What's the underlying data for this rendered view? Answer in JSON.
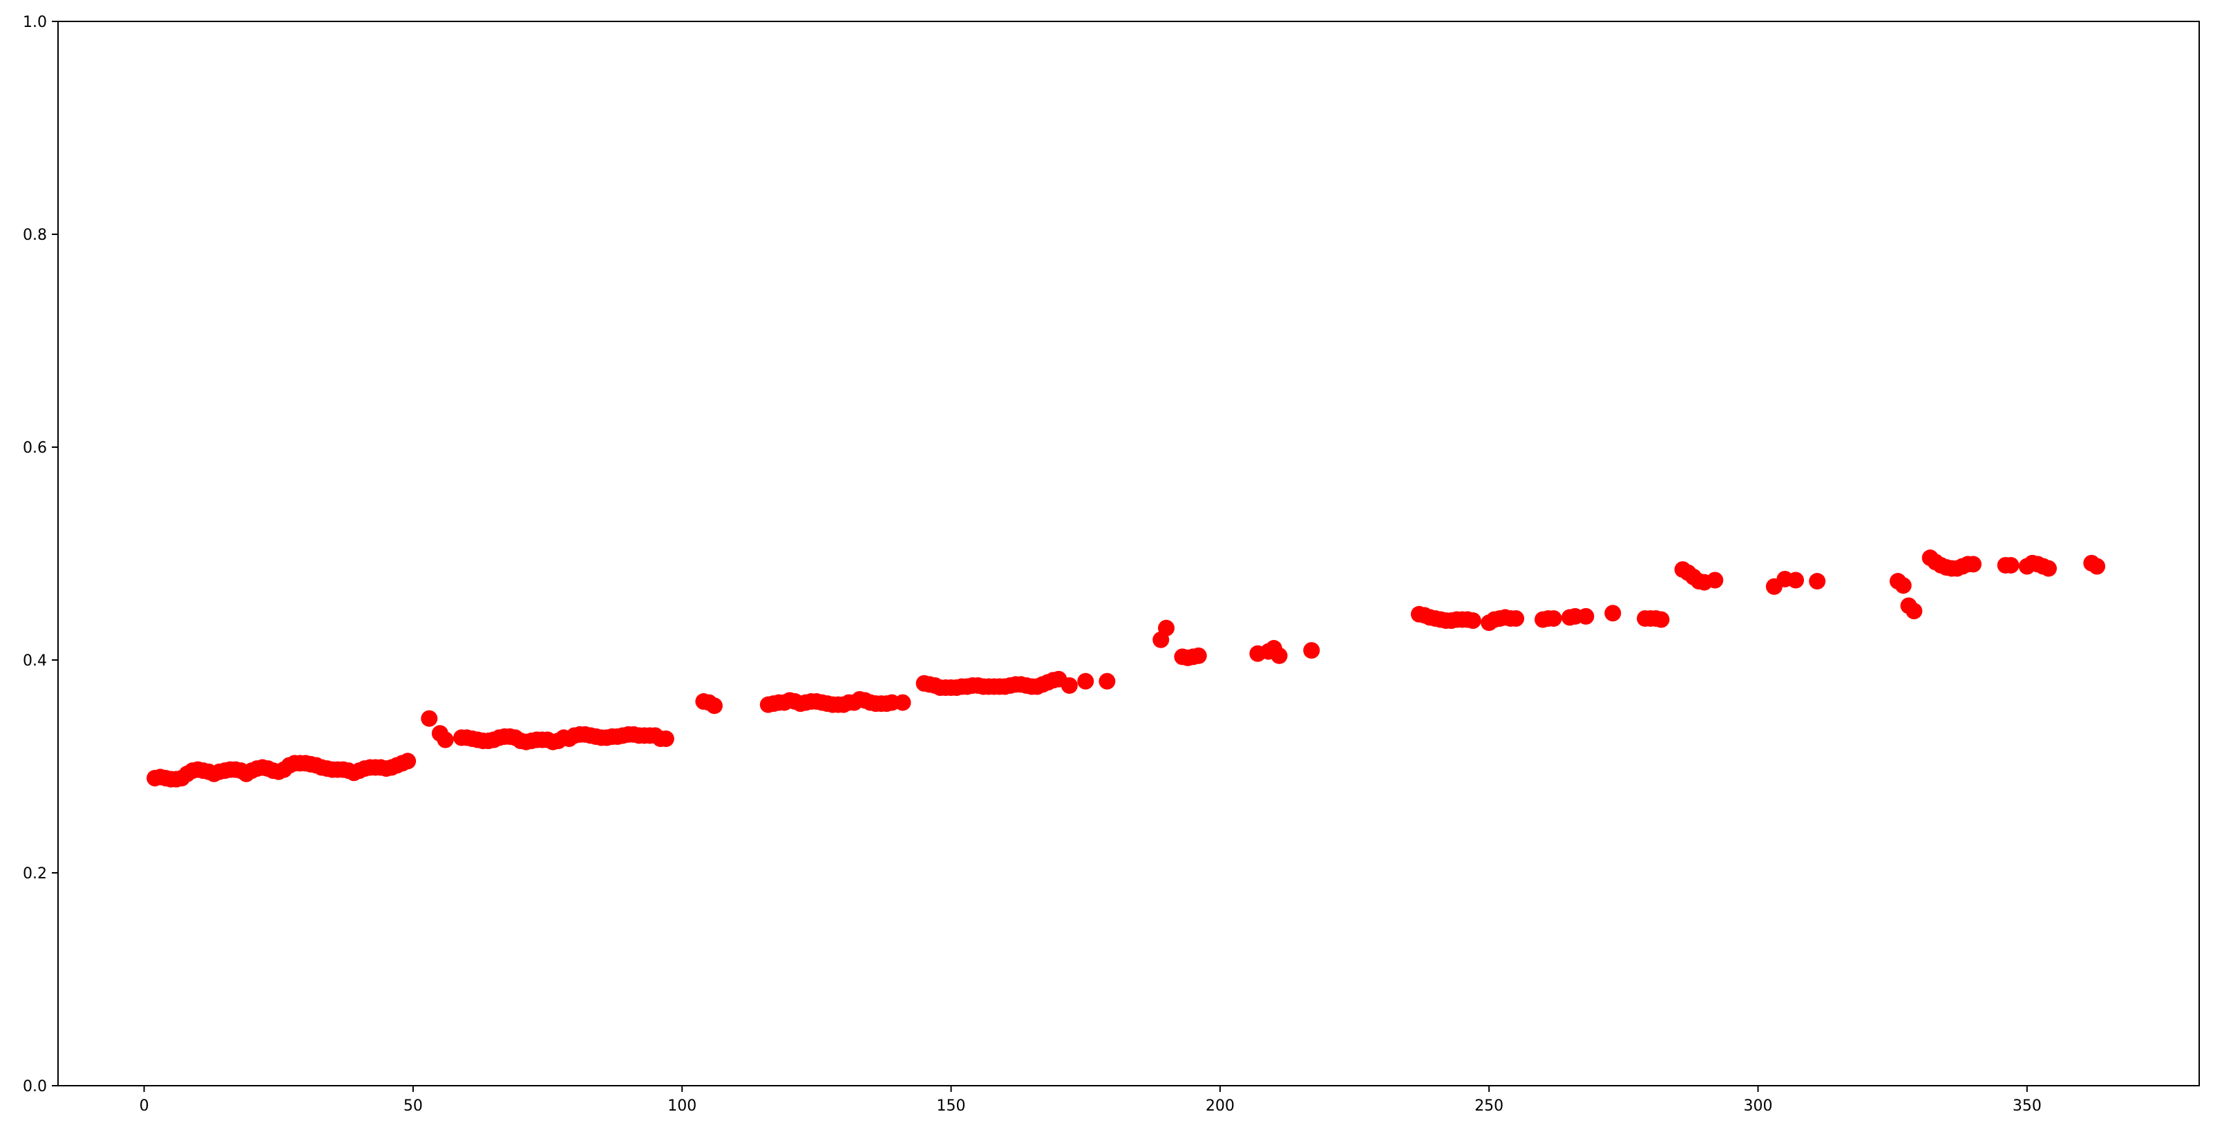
{
  "chart_data": {
    "type": "scatter",
    "title": "",
    "xlabel": "",
    "ylabel": "",
    "xlim": [
      -16,
      382
    ],
    "ylim": [
      0,
      1
    ],
    "grid": false,
    "marker_color": "#ff0000",
    "x_ticks": [
      0,
      50,
      100,
      150,
      200,
      250,
      300,
      350
    ],
    "x_tick_labels": [
      "0",
      "50",
      "100",
      "150",
      "200",
      "250",
      "300",
      "350"
    ],
    "y_ticks": [
      0,
      0.2,
      0.4,
      0.6,
      0.8,
      1.0
    ],
    "y_tick_labels": [
      "0.0",
      "0.2",
      "0.4",
      "0.6",
      "0.8",
      "1.0"
    ],
    "points": [
      [
        2,
        0.289
      ],
      [
        3,
        0.29
      ],
      [
        4,
        0.289
      ],
      [
        5,
        0.288
      ],
      [
        6,
        0.288
      ],
      [
        7,
        0.289
      ],
      [
        8,
        0.293
      ],
      [
        9,
        0.296
      ],
      [
        10,
        0.297
      ],
      [
        11,
        0.296
      ],
      [
        12,
        0.295
      ],
      [
        13,
        0.293
      ],
      [
        14,
        0.295
      ],
      [
        15,
        0.296
      ],
      [
        16,
        0.297
      ],
      [
        17,
        0.297
      ],
      [
        18,
        0.296
      ],
      [
        19,
        0.293
      ],
      [
        20,
        0.296
      ],
      [
        21,
        0.298
      ],
      [
        22,
        0.299
      ],
      [
        23,
        0.298
      ],
      [
        24,
        0.296
      ],
      [
        25,
        0.295
      ],
      [
        26,
        0.297
      ],
      [
        27,
        0.301
      ],
      [
        28,
        0.303
      ],
      [
        29,
        0.303
      ],
      [
        30,
        0.303
      ],
      [
        31,
        0.302
      ],
      [
        32,
        0.301
      ],
      [
        33,
        0.299
      ],
      [
        34,
        0.298
      ],
      [
        35,
        0.297
      ],
      [
        36,
        0.297
      ],
      [
        37,
        0.297
      ],
      [
        38,
        0.296
      ],
      [
        39,
        0.294
      ],
      [
        40,
        0.296
      ],
      [
        41,
        0.298
      ],
      [
        42,
        0.299
      ],
      [
        43,
        0.299
      ],
      [
        44,
        0.299
      ],
      [
        45,
        0.298
      ],
      [
        46,
        0.299
      ],
      [
        47,
        0.301
      ],
      [
        48,
        0.303
      ],
      [
        49,
        0.305
      ],
      [
        53,
        0.345
      ],
      [
        55,
        0.331
      ],
      [
        56,
        0.325
      ],
      [
        59,
        0.327
      ],
      [
        60,
        0.327
      ],
      [
        61,
        0.326
      ],
      [
        62,
        0.325
      ],
      [
        63,
        0.324
      ],
      [
        64,
        0.324
      ],
      [
        65,
        0.325
      ],
      [
        66,
        0.327
      ],
      [
        67,
        0.328
      ],
      [
        68,
        0.328
      ],
      [
        69,
        0.327
      ],
      [
        70,
        0.324
      ],
      [
        71,
        0.323
      ],
      [
        72,
        0.324
      ],
      [
        73,
        0.325
      ],
      [
        74,
        0.325
      ],
      [
        75,
        0.325
      ],
      [
        76,
        0.323
      ],
      [
        77,
        0.324
      ],
      [
        78,
        0.327
      ],
      [
        79,
        0.326
      ],
      [
        80,
        0.329
      ],
      [
        81,
        0.33
      ],
      [
        82,
        0.33
      ],
      [
        83,
        0.329
      ],
      [
        84,
        0.328
      ],
      [
        85,
        0.327
      ],
      [
        86,
        0.327
      ],
      [
        87,
        0.328
      ],
      [
        88,
        0.328
      ],
      [
        89,
        0.329
      ],
      [
        90,
        0.33
      ],
      [
        91,
        0.33
      ],
      [
        92,
        0.329
      ],
      [
        93,
        0.329
      ],
      [
        94,
        0.329
      ],
      [
        95,
        0.329
      ],
      [
        96,
        0.326
      ],
      [
        97,
        0.326
      ],
      [
        104,
        0.361
      ],
      [
        105,
        0.36
      ],
      [
        106,
        0.357
      ],
      [
        116,
        0.358
      ],
      [
        117,
        0.359
      ],
      [
        118,
        0.36
      ],
      [
        119,
        0.36
      ],
      [
        120,
        0.362
      ],
      [
        121,
        0.361
      ],
      [
        122,
        0.359
      ],
      [
        123,
        0.36
      ],
      [
        124,
        0.361
      ],
      [
        125,
        0.361
      ],
      [
        126,
        0.36
      ],
      [
        127,
        0.359
      ],
      [
        128,
        0.358
      ],
      [
        129,
        0.358
      ],
      [
        130,
        0.358
      ],
      [
        131,
        0.36
      ],
      [
        132,
        0.36
      ],
      [
        133,
        0.363
      ],
      [
        134,
        0.362
      ],
      [
        135,
        0.36
      ],
      [
        136,
        0.359
      ],
      [
        137,
        0.359
      ],
      [
        138,
        0.359
      ],
      [
        139,
        0.36
      ],
      [
        141,
        0.36
      ],
      [
        145,
        0.378
      ],
      [
        146,
        0.377
      ],
      [
        147,
        0.376
      ],
      [
        148,
        0.374
      ],
      [
        149,
        0.374
      ],
      [
        150,
        0.374
      ],
      [
        151,
        0.374
      ],
      [
        152,
        0.375
      ],
      [
        153,
        0.375
      ],
      [
        154,
        0.376
      ],
      [
        155,
        0.376
      ],
      [
        156,
        0.375
      ],
      [
        157,
        0.375
      ],
      [
        158,
        0.375
      ],
      [
        159,
        0.375
      ],
      [
        160,
        0.375
      ],
      [
        161,
        0.376
      ],
      [
        162,
        0.377
      ],
      [
        163,
        0.377
      ],
      [
        164,
        0.376
      ],
      [
        165,
        0.375
      ],
      [
        166,
        0.375
      ],
      [
        167,
        0.377
      ],
      [
        168,
        0.379
      ],
      [
        169,
        0.381
      ],
      [
        170,
        0.382
      ],
      [
        172,
        0.376
      ],
      [
        175,
        0.38
      ],
      [
        179,
        0.38
      ],
      [
        189,
        0.419
      ],
      [
        190,
        0.43
      ],
      [
        193,
        0.403
      ],
      [
        194,
        0.402
      ],
      [
        195,
        0.403
      ],
      [
        196,
        0.404
      ],
      [
        207,
        0.406
      ],
      [
        209,
        0.408
      ],
      [
        210,
        0.411
      ],
      [
        211,
        0.404
      ],
      [
        217,
        0.409
      ],
      [
        237,
        0.443
      ],
      [
        238,
        0.442
      ],
      [
        239,
        0.44
      ],
      [
        240,
        0.439
      ],
      [
        241,
        0.438
      ],
      [
        242,
        0.437
      ],
      [
        243,
        0.437
      ],
      [
        244,
        0.438
      ],
      [
        245,
        0.438
      ],
      [
        246,
        0.438
      ],
      [
        247,
        0.437
      ],
      [
        250,
        0.435
      ],
      [
        251,
        0.438
      ],
      [
        252,
        0.439
      ],
      [
        253,
        0.44
      ],
      [
        254,
        0.439
      ],
      [
        255,
        0.439
      ],
      [
        260,
        0.438
      ],
      [
        261,
        0.439
      ],
      [
        262,
        0.439
      ],
      [
        265,
        0.44
      ],
      [
        266,
        0.441
      ],
      [
        268,
        0.441
      ],
      [
        273,
        0.444
      ],
      [
        279,
        0.439
      ],
      [
        280,
        0.439
      ],
      [
        281,
        0.439
      ],
      [
        282,
        0.438
      ],
      [
        286,
        0.485
      ],
      [
        287,
        0.482
      ],
      [
        288,
        0.478
      ],
      [
        289,
        0.474
      ],
      [
        290,
        0.473
      ],
      [
        292,
        0.475
      ],
      [
        303,
        0.469
      ],
      [
        305,
        0.476
      ],
      [
        307,
        0.475
      ],
      [
        311,
        0.474
      ],
      [
        326,
        0.474
      ],
      [
        327,
        0.47
      ],
      [
        328,
        0.451
      ],
      [
        329,
        0.446
      ],
      [
        332,
        0.496
      ],
      [
        333,
        0.492
      ],
      [
        334,
        0.489
      ],
      [
        335,
        0.487
      ],
      [
        336,
        0.486
      ],
      [
        337,
        0.486
      ],
      [
        338,
        0.488
      ],
      [
        339,
        0.49
      ],
      [
        340,
        0.49
      ],
      [
        346,
        0.489
      ],
      [
        347,
        0.489
      ],
      [
        350,
        0.488
      ],
      [
        351,
        0.491
      ],
      [
        352,
        0.49
      ],
      [
        353,
        0.488
      ],
      [
        354,
        0.486
      ],
      [
        362,
        0.491
      ],
      [
        363,
        0.488
      ]
    ]
  }
}
